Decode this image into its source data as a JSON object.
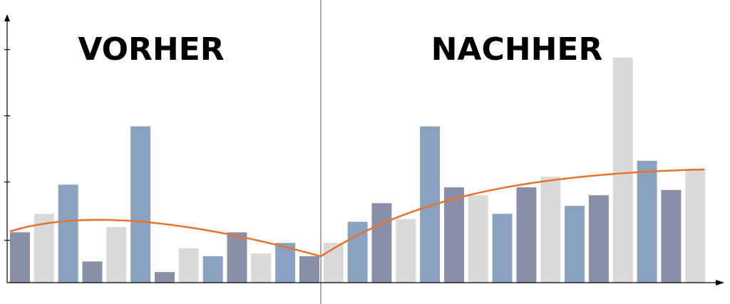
{
  "chart_data": {
    "type": "bar",
    "annotations": [
      "VORHER",
      "NACHHER"
    ],
    "values": [
      19,
      26,
      37,
      8,
      21,
      59,
      4,
      13,
      10,
      19,
      11,
      15,
      10,
      15,
      23,
      30,
      24,
      59,
      36,
      33,
      26,
      36,
      40,
      29,
      33,
      85,
      46,
      35,
      43
    ],
    "colors": [
      "#8a8fa8",
      "#d9d9d9",
      "#8aa2bf",
      "#8a8fa8",
      "#d9d9d9",
      "#8aa2bf",
      "#8a8fa8",
      "#d9d9d9",
      "#8aa2bf",
      "#8a8fa8",
      "#d9d9d9",
      "#8aa2bf",
      "#8a8fa8",
      "#d9d9d9",
      "#8aa2bf",
      "#8a8fa8",
      "#d9d9d9",
      "#8aa2bf",
      "#8a8fa8",
      "#d9d9d9",
      "#8aa2bf",
      "#8a8fa8",
      "#d9d9d9",
      "#8aa2bf",
      "#8a8fa8",
      "#d9d9d9",
      "#8aa2bf",
      "#8a8fa8",
      "#d9d9d9"
    ],
    "ylim": [
      0,
      100
    ],
    "yticks": [
      16,
      38,
      63,
      88
    ]
  }
}
